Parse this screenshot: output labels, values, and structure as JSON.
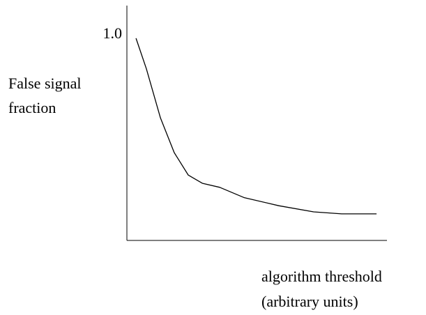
{
  "chart_data": {
    "type": "line",
    "ylabel": [
      "False signal",
      "fraction"
    ],
    "xlabel": [
      "algorithm threshold",
      "(arbitrary units)"
    ],
    "x": [
      0.35,
      0.75,
      1.29,
      1.82,
      2.36,
      2.9,
      3.57,
      4.5,
      5.84,
      7.18,
      8.26,
      9.6
    ],
    "series": [
      {
        "color": "#000000",
        "values": [
          0.99,
          0.84,
          0.6,
          0.43,
          0.32,
          0.28,
          0.26,
          0.21,
          0.17,
          0.14,
          0.13,
          0.13
        ]
      }
    ],
    "xlim": [
      0,
      10
    ],
    "ylim": [
      0,
      1.15
    ],
    "yticks": [
      {
        "value": 1,
        "label": "1.0"
      }
    ],
    "grid": false
  }
}
